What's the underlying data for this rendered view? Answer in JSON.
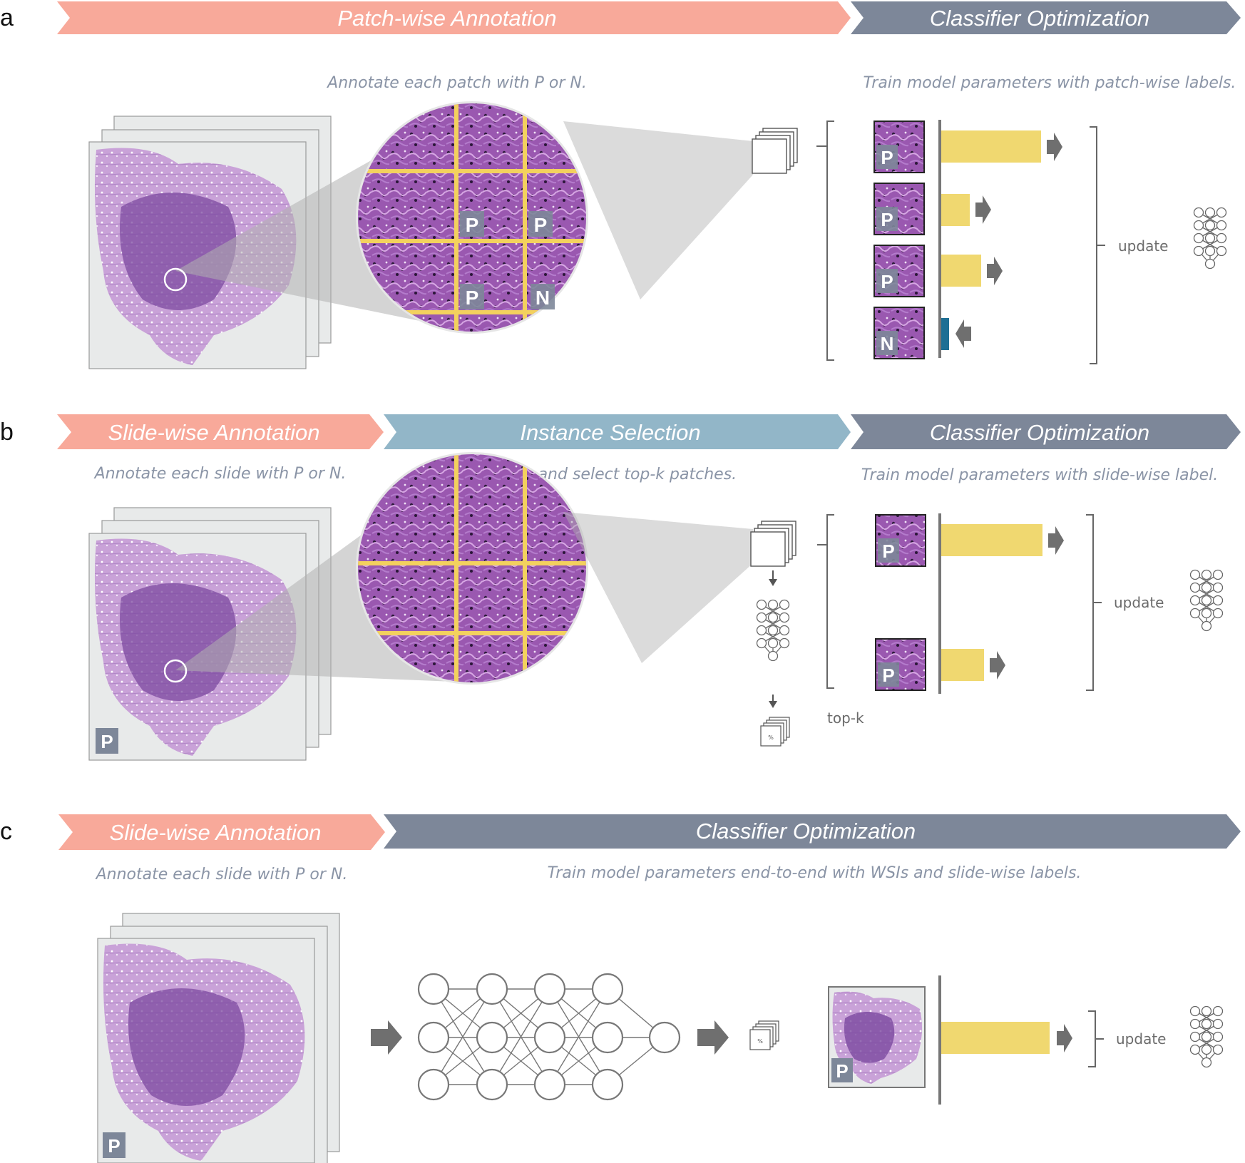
{
  "panels": {
    "a": {
      "letter": "a",
      "banner1": "Patch-wise Annotation",
      "banner2": "Classifier Optimization",
      "desc1": "Annotate each patch with P or N.",
      "desc2": "Train model parameters with patch-wise labels.",
      "grid_labels": [
        "P",
        "P",
        "P",
        "N"
      ],
      "patch_labels": [
        "P",
        "P",
        "P",
        "N"
      ],
      "update": "update"
    },
    "b": {
      "letter": "b",
      "banner1": "Slide-wise Annotation",
      "banner2": "Instance Selection",
      "banner3": "Classifier Optimization",
      "desc1": "Annotate each slide with P or N.",
      "desc2": "Infer and select top-k patches.",
      "desc3": "Train model parameters with slide-wise label.",
      "slide_label": "P",
      "patch_labels": [
        "P",
        "P"
      ],
      "topk": "top-k",
      "pct": "%",
      "update": "update"
    },
    "c": {
      "letter": "c",
      "banner1": "Slide-wise Annotation",
      "banner2": "Classifier Optimization",
      "desc1": "Annotate each slide with P or N.",
      "desc2": "Train model parameters end-to-end with WSIs and slide-wise labels.",
      "slide_label": "P",
      "thumb_label": "P",
      "pct": "%",
      "update": "update"
    }
  },
  "colors": {
    "annotation": "#f8a99a",
    "selection": "#92b6c8",
    "optimization": "#7d8799",
    "bar_positive": "#f0d870",
    "bar_negative": "#1f6f94",
    "grid": "#f3d15e",
    "tissue": "#8f4ea6",
    "arrow": "#6f6f6f"
  }
}
